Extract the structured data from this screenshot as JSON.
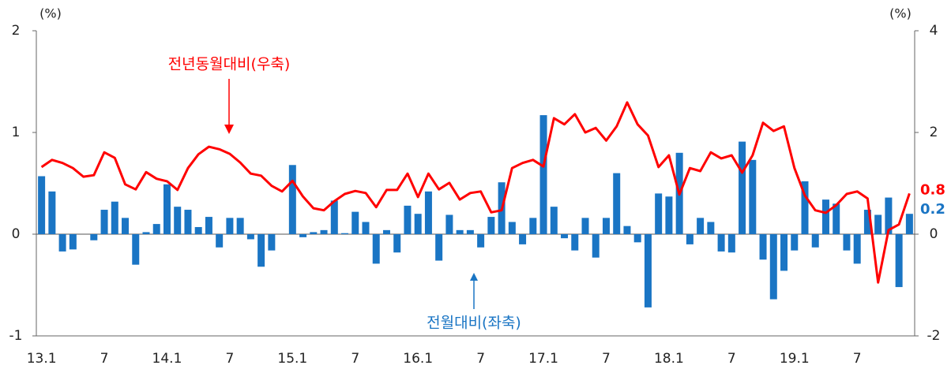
{
  "chart_data": {
    "type": "bar_line",
    "ylabel": "(%)",
    "y2label": "(%)",
    "categories": [
      "13.1",
      null,
      null,
      null,
      null,
      null,
      "7",
      null,
      null,
      null,
      null,
      null,
      "14.1",
      null,
      null,
      null,
      null,
      null,
      "7",
      null,
      null,
      null,
      null,
      null,
      "15.1",
      null,
      null,
      null,
      null,
      null,
      "7",
      null,
      null,
      null,
      null,
      null,
      "16.1",
      null,
      null,
      null,
      null,
      null,
      "7",
      null,
      null,
      null,
      null,
      null,
      "17.1",
      null,
      null,
      null,
      null,
      null,
      "7",
      null,
      null,
      null,
      null,
      null,
      "18.1",
      null,
      null,
      null,
      null,
      null,
      "7",
      null,
      null,
      null,
      null,
      null,
      "19.1",
      null,
      null,
      null,
      null,
      null,
      "7",
      null,
      null,
      null,
      null,
      null
    ],
    "ylim": [
      -1,
      2
    ],
    "yticks": [
      -1,
      0,
      1,
      2
    ],
    "y2lim": [
      -2,
      4
    ],
    "y2ticks": [
      -2,
      0,
      2,
      4
    ],
    "series": [
      {
        "name": "전월대비(좌축)",
        "color": "#1a75c4",
        "kind": "bar",
        "last_label": "0.2",
        "values": [
          0.57,
          0.42,
          -0.17,
          -0.15,
          0,
          -0.06,
          0.24,
          0.32,
          0.16,
          -0.3,
          0.02,
          0.1,
          0.49,
          0.27,
          0.24,
          0.07,
          0.17,
          -0.13,
          0.16,
          0.16,
          -0.05,
          -0.32,
          -0.16,
          0,
          0.68,
          -0.03,
          0.02,
          0.04,
          0.33,
          0.01,
          0.22,
          0.12,
          -0.29,
          0.04,
          -0.18,
          0.28,
          0.2,
          0.42,
          -0.26,
          0.19,
          0.04,
          0.04,
          -0.13,
          0.17,
          0.51,
          0.12,
          -0.1,
          0.16,
          1.17,
          0.27,
          -0.04,
          -0.16,
          0.16,
          -0.23,
          0.16,
          0.6,
          0.08,
          -0.08,
          -0.72,
          0.4,
          0.37,
          0.8,
          -0.1,
          0.16,
          0.12,
          -0.17,
          -0.18,
          0.91,
          0.73,
          -0.25,
          -0.64,
          -0.36,
          -0.16,
          0.52,
          -0.13,
          0.34,
          0.3,
          -0.16,
          -0.29,
          0.24,
          0.19,
          0.36,
          -0.52,
          0.2
        ]
      },
      {
        "name": "전년동월대비(우축)",
        "color": "#ff0000",
        "kind": "line",
        "axis": "y2",
        "last_label": "0.8",
        "values": [
          1.32,
          1.46,
          1.4,
          1.3,
          1.13,
          1.16,
          1.61,
          1.5,
          0.98,
          0.88,
          1.22,
          1.09,
          1.04,
          0.87,
          1.3,
          1.57,
          1.72,
          1.67,
          1.58,
          1.41,
          1.19,
          1.15,
          0.95,
          0.84,
          1.05,
          0.74,
          0.51,
          0.47,
          0.65,
          0.79,
          0.85,
          0.81,
          0.53,
          0.87,
          0.87,
          1.19,
          0.73,
          1.19,
          0.88,
          1.01,
          0.68,
          0.81,
          0.84,
          0.43,
          0.47,
          1.3,
          1.4,
          1.46,
          1.33,
          2.28,
          2.16,
          2.36,
          2.0,
          2.09,
          1.84,
          2.12,
          2.59,
          2.16,
          1.94,
          1.32,
          1.55,
          0.78,
          1.3,
          1.24,
          1.61,
          1.49,
          1.55,
          1.21,
          1.55,
          2.19,
          2.03,
          2.12,
          1.3,
          0.76,
          0.47,
          0.42,
          0.57,
          0.79,
          0.84,
          0.7,
          -0.95,
          0.08,
          0.19,
          0.8
        ]
      }
    ]
  }
}
